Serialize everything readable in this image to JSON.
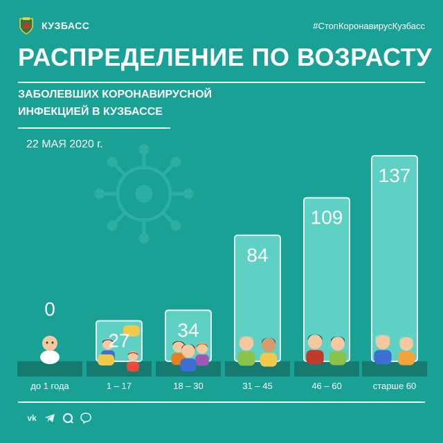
{
  "header": {
    "brand": "КУЗБАСС",
    "hashtag": "#СтопКоронавирусКузбасс",
    "title": "РАСПРЕДЕЛЕНИЕ ПО ВОЗРАСТУ",
    "subtitle_line1": "ЗАБОЛЕВШИХ КОРОНАВИРУСНОЙ",
    "subtitle_line2": "ИНФЕКЦИЕЙ В КУЗБАССЕ",
    "date": "22 МАЯ 2020 г."
  },
  "chart_data": {
    "type": "bar",
    "title": "РАСПРЕДЕЛЕНИЕ ПО ВОЗРАСТУ",
    "categories": [
      "до 1 года",
      "1 – 17",
      "18 – 30",
      "31 – 45",
      "46 – 60",
      "старше 60"
    ],
    "values": [
      0,
      27,
      34,
      84,
      109,
      137
    ],
    "ylim": [
      0,
      137
    ],
    "grid": false,
    "legend": "none"
  },
  "footer": {
    "social_icons": [
      "vk-icon",
      "telegram-icon",
      "ok-icon",
      "viber-icon"
    ]
  },
  "colors": {
    "background": "#1aa195",
    "bar_fill": "#5fd0c4",
    "bar_border": "#eafcf9",
    "base_band": "#177a70",
    "text": "#ffffff"
  }
}
